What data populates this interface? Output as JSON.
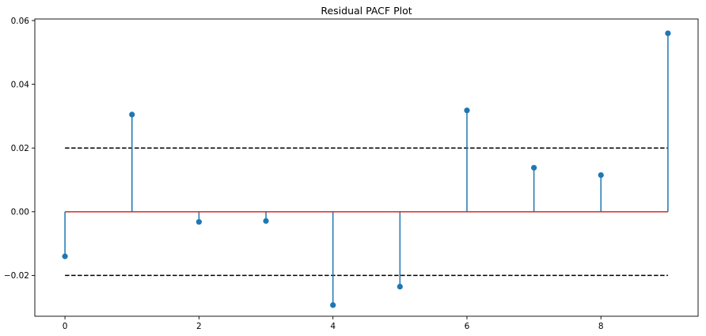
{
  "chart_data": {
    "type": "stem",
    "title": "Residual PACF Plot",
    "xlabel": "",
    "ylabel": "",
    "x": [
      0,
      1,
      2,
      3,
      4,
      5,
      6,
      7,
      8,
      9
    ],
    "values": [
      -0.014,
      0.0305,
      -0.0032,
      -0.0029,
      -0.0293,
      -0.0235,
      0.0318,
      0.0138,
      0.0115,
      0.056
    ],
    "confidence_bounds": [
      0.02,
      -0.02
    ],
    "baseline": 0,
    "xlim": [
      -0.45,
      9.45
    ],
    "ylim": [
      -0.0328,
      0.0605
    ],
    "xticks": [
      0,
      2,
      4,
      6,
      8
    ],
    "xtick_labels": [
      "0",
      "2",
      "4",
      "6",
      "8"
    ],
    "yticks": [
      -0.02,
      0.0,
      0.02,
      0.04,
      0.06
    ],
    "ytick_labels": [
      "−0.02",
      "0.00",
      "0.02",
      "0.04",
      "0.06"
    ],
    "grid": false,
    "legend": "none",
    "colors": {
      "stem": "#1f77b4",
      "marker": "#1f77b4",
      "baseline": "#d62728",
      "bounds": "#000000",
      "axes": "#000000"
    }
  }
}
